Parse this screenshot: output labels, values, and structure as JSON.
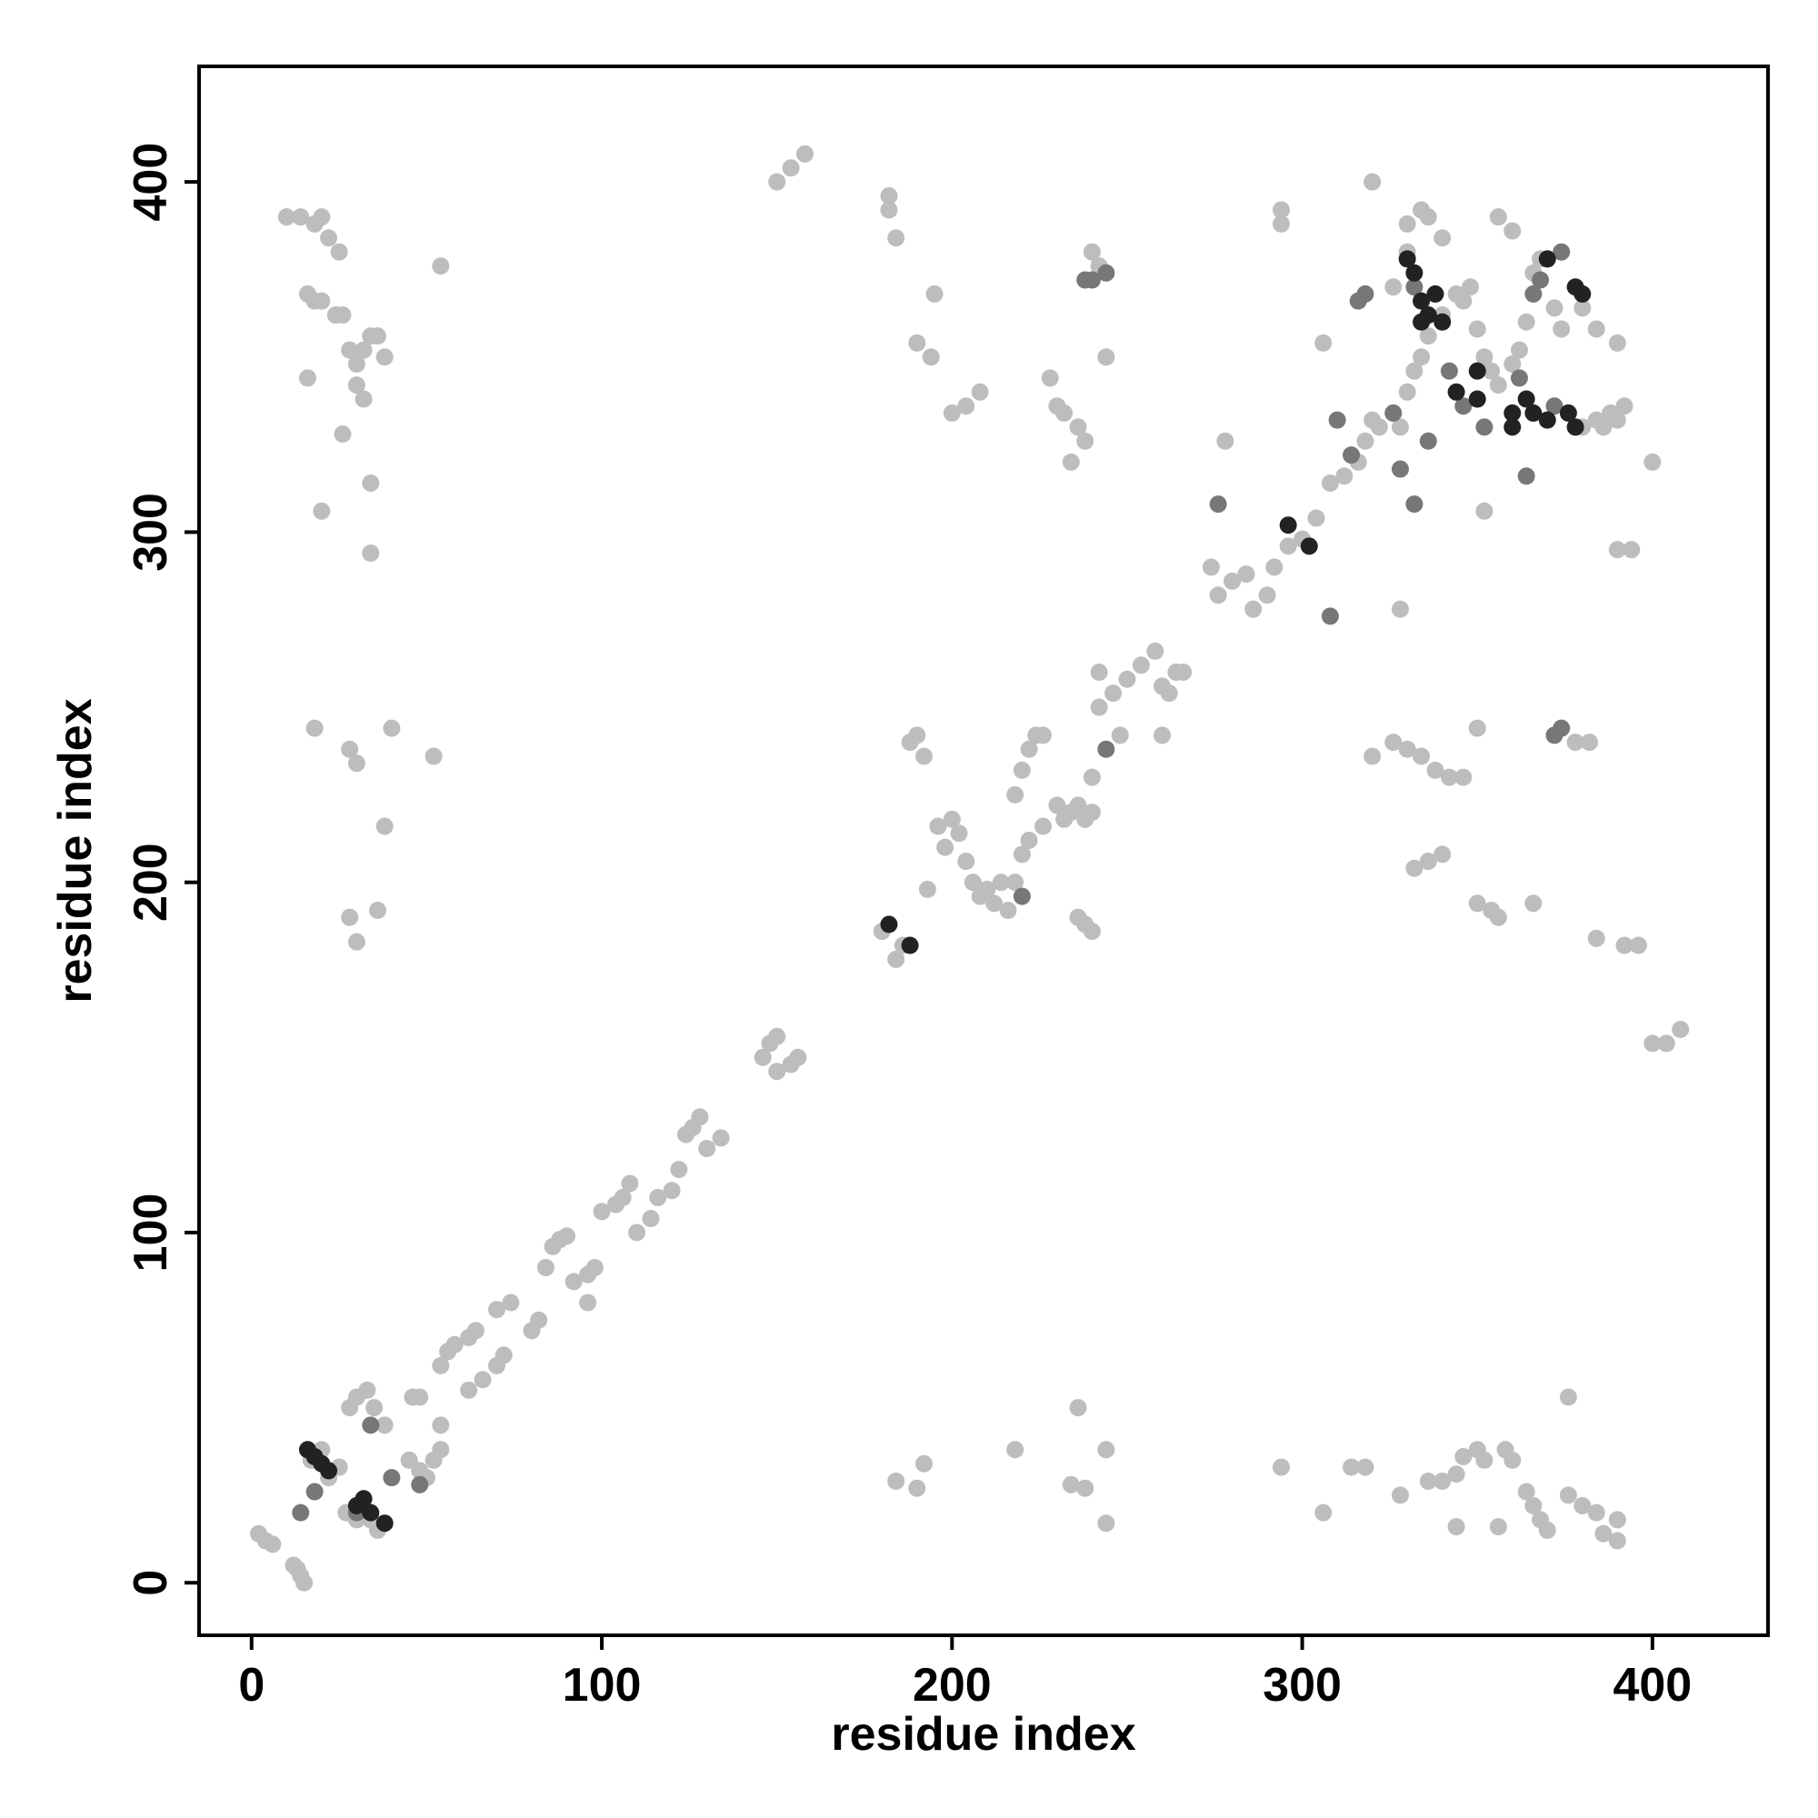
{
  "chart_data": {
    "type": "scatter",
    "x_label": "residue index",
    "y_label": "residue index",
    "xlim": [
      -15,
      433
    ],
    "ylim": [
      -15,
      433
    ],
    "xticks": [
      0,
      100,
      200,
      300,
      400
    ],
    "yticks": [
      0,
      100,
      200,
      300,
      400
    ],
    "grid": false,
    "series": [
      {
        "color": "#bdbdbd",
        "x": [
          2,
          4,
          6,
          13,
          14,
          15,
          12,
          17,
          20,
          22,
          25,
          27,
          30,
          28,
          30,
          33,
          35,
          38,
          34,
          36,
          45,
          48,
          50,
          52,
          54,
          46,
          48,
          54,
          54,
          56,
          58,
          62,
          64,
          62,
          66,
          70,
          72,
          70,
          74,
          80,
          82,
          84,
          86,
          88,
          90,
          92,
          96,
          98,
          96,
          100,
          104,
          106,
          108,
          110,
          114,
          116,
          120,
          122,
          124,
          126,
          128,
          130,
          134,
          146,
          148,
          150,
          150,
          154,
          156,
          180,
          184,
          188,
          190,
          192,
          193,
          196,
          198,
          200,
          202,
          204,
          206,
          208,
          210,
          212,
          214,
          216,
          218,
          220,
          222,
          218,
          220,
          222,
          224,
          226,
          230,
          232,
          234,
          236,
          238,
          240,
          236,
          238,
          240,
          242,
          246,
          250,
          254,
          258,
          260,
          262,
          264,
          276,
          280,
          284,
          286,
          290,
          292,
          296,
          300,
          304,
          308,
          312,
          316,
          318,
          320,
          322,
          326,
          328,
          330,
          332,
          334,
          336,
          340,
          344,
          348,
          350,
          352,
          354,
          356,
          360,
          362,
          364,
          366,
          368,
          372,
          374,
          380,
          384,
          388,
          390,
          392,
          386,
          10,
          14,
          18,
          20,
          22,
          25,
          16,
          18,
          20,
          24,
          26,
          28,
          30,
          32,
          34,
          36,
          38,
          30,
          32,
          16,
          26,
          34,
          34,
          20,
          54,
          18,
          28,
          30,
          40,
          38,
          52,
          28,
          36,
          30,
          150,
          154,
          158,
          182,
          182,
          184,
          195,
          190,
          194,
          204,
          208,
          200,
          228,
          230,
          232,
          236,
          238,
          234,
          240,
          242,
          244,
          294,
          294,
          306,
          320,
          330,
          334,
          336,
          340,
          330,
          326,
          346,
          356,
          360,
          352,
          380,
          384,
          390,
          400,
          390,
          394,
          328,
          278,
          320,
          326,
          330,
          334,
          338,
          342,
          346,
          332,
          336,
          340,
          350,
          354,
          356,
          366,
          384,
          392,
          396,
          400,
          404,
          408,
          350,
          378,
          382,
          236,
          218,
          244,
          234,
          238,
          244,
          184,
          192,
          190,
          294,
          306,
          314,
          318,
          328,
          336,
          340,
          344,
          346,
          350,
          352,
          358,
          360,
          344,
          356,
          364,
          366,
          368,
          370,
          376,
          380,
          384,
          390,
          390,
          386,
          376,
          260,
          248,
          240,
          186,
          226,
          242,
          266,
          274
        ],
        "values": [
          14,
          12,
          11,
          4,
          2,
          0,
          5,
          35,
          38,
          30,
          33,
          20,
          18,
          50,
          53,
          55,
          50,
          45,
          18,
          15,
          35,
          32,
          30,
          35,
          38,
          53,
          53,
          45,
          62,
          66,
          68,
          70,
          72,
          55,
          58,
          62,
          65,
          78,
          80,
          72,
          75,
          90,
          96,
          98,
          99,
          86,
          88,
          90,
          80,
          106,
          108,
          110,
          114,
          100,
          104,
          110,
          112,
          118,
          128,
          130,
          133,
          124,
          127,
          150,
          154,
          156,
          146,
          148,
          150,
          186,
          178,
          240,
          242,
          236,
          198,
          216,
          210,
          218,
          214,
          206,
          200,
          196,
          198,
          194,
          200,
          192,
          200,
          208,
          212,
          225,
          232,
          238,
          242,
          216,
          222,
          218,
          220,
          222,
          218,
          220,
          190,
          188,
          186,
          250,
          254,
          258,
          262,
          266,
          256,
          254,
          260,
          282,
          286,
          288,
          278,
          282,
          290,
          296,
          298,
          304,
          314,
          316,
          320,
          326,
          332,
          330,
          334,
          330,
          340,
          346,
          350,
          356,
          362,
          368,
          370,
          358,
          350,
          346,
          342,
          348,
          352,
          360,
          374,
          378,
          364,
          358,
          330,
          332,
          334,
          332,
          336,
          330,
          390,
          390,
          388,
          390,
          384,
          380,
          368,
          366,
          366,
          362,
          362,
          352,
          348,
          352,
          356,
          356,
          350,
          342,
          338,
          344,
          328,
          314,
          294,
          306,
          376,
          244,
          238,
          234,
          244,
          216,
          236,
          190,
          192,
          183,
          400,
          404,
          408,
          396,
          392,
          384,
          368,
          354,
          350,
          336,
          340,
          334,
          344,
          336,
          334,
          330,
          326,
          320,
          380,
          376,
          350,
          392,
          388,
          354,
          400,
          388,
          392,
          390,
          384,
          380,
          370,
          366,
          390,
          386,
          306,
          364,
          358,
          354,
          320,
          295,
          295,
          278,
          326,
          236,
          240,
          238,
          236,
          232,
          230,
          230,
          204,
          206,
          208,
          194,
          192,
          190,
          194,
          184,
          182,
          182,
          154,
          154,
          158,
          244,
          240,
          240,
          50,
          38,
          38,
          28,
          27,
          17,
          29,
          34,
          27,
          33,
          20,
          33,
          33,
          25,
          29,
          29,
          31,
          36,
          38,
          35,
          38,
          35,
          16,
          16,
          26,
          22,
          18,
          15,
          25,
          22,
          20,
          18,
          12,
          14,
          53,
          242,
          242,
          230,
          182,
          242,
          260,
          260,
          290
        ]
      },
      {
        "color": "#777777",
        "x": [
          276,
          308,
          346,
          332,
          328,
          336,
          318,
          310,
          314,
          342,
          352,
          362,
          364,
          366,
          368,
          374,
          316,
          238,
          240,
          244,
          372,
          374,
          244,
          14,
          30,
          34,
          40,
          48,
          18,
          220,
          326,
          332,
          372
        ],
        "values": [
          308,
          276,
          336,
          308,
          318,
          326,
          368,
          332,
          322,
          346,
          330,
          344,
          316,
          368,
          372,
          380,
          366,
          372,
          372,
          374,
          242,
          244,
          238,
          20,
          20,
          45,
          30,
          28,
          26,
          196,
          334,
          370,
          336
        ]
      },
      {
        "color": "#222222",
        "x": [
          16,
          18,
          20,
          22,
          30,
          32,
          34,
          38,
          182,
          188,
          296,
          302,
          330,
          332,
          334,
          336,
          338,
          340,
          350,
          360,
          364,
          366,
          370,
          376,
          378,
          360,
          334,
          370,
          378,
          380,
          344,
          350
        ],
        "values": [
          38,
          36,
          34,
          32,
          22,
          24,
          20,
          17,
          188,
          182,
          302,
          296,
          378,
          374,
          366,
          362,
          368,
          360,
          338,
          334,
          338,
          334,
          332,
          334,
          330,
          330,
          360,
          378,
          370,
          368,
          340,
          346
        ]
      }
    ]
  }
}
